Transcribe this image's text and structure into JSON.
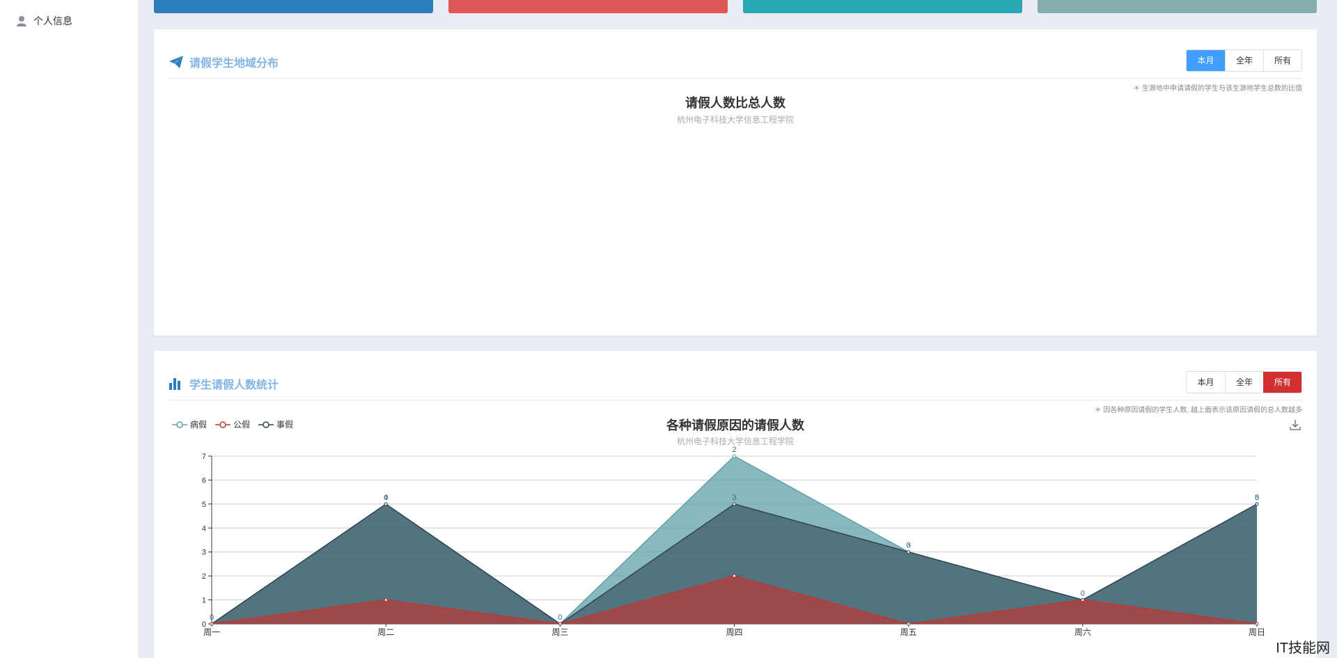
{
  "sidebar": {
    "items": [
      {
        "label": "个人信息",
        "icon": "user-icon"
      }
    ]
  },
  "stat_cards": [
    {
      "color": "#2b7fbd"
    },
    {
      "color": "#dd5757"
    },
    {
      "color": "#2aa9b5"
    },
    {
      "color": "#84adab"
    }
  ],
  "region_panel": {
    "title": "请假学生地域分布",
    "icon": "paper-plane-icon",
    "buttons": [
      "本月",
      "全年",
      "所有"
    ],
    "active_button": "本月",
    "note": "＊ 生源地中申请请假的学生与该生源地学生总数的比值",
    "chart_title": "请假人数比总人数",
    "chart_subtitle": "杭州电子科技大学信息工程学院"
  },
  "stats_panel": {
    "title": "学生请假人数统计",
    "icon": "bar-chart-icon",
    "buttons": [
      "本月",
      "全年",
      "所有"
    ],
    "active_button": "所有",
    "note": "＊ 因各种原因请假的学生人数, 越上面表示该原因请假的总人数越多"
  },
  "chart_data": {
    "type": "area",
    "title": "各种请假原因的请假人数",
    "subtitle": "杭州电子科技大学信息工程学院",
    "categories": [
      "周一",
      "周二",
      "周三",
      "周四",
      "周五",
      "周六",
      "周日"
    ],
    "ylim": [
      0,
      7
    ],
    "yticks": [
      0,
      1,
      2,
      3,
      4,
      5,
      6,
      7
    ],
    "stacked": true,
    "grid": true,
    "legend_position": "top-left",
    "series": [
      {
        "name": "病假",
        "color": "#61a0a8",
        "values": [
          0,
          0,
          0,
          2,
          0,
          0,
          0
        ],
        "stack_total": [
          0,
          5,
          0,
          7,
          3,
          1,
          5
        ]
      },
      {
        "name": "公假",
        "color": "#c23531",
        "values": [
          0,
          1,
          0,
          2,
          0,
          1,
          0
        ],
        "stack_total": [
          0,
          1,
          0,
          2,
          0,
          1,
          0
        ]
      },
      {
        "name": "事假",
        "color": "#2f4554",
        "values": [
          0,
          4,
          0,
          3,
          3,
          0,
          5
        ],
        "stack_total": [
          0,
          5,
          0,
          5,
          3,
          1,
          5
        ]
      }
    ],
    "data_labels": [
      {
        "x": "周一",
        "text": "0",
        "at": 0
      },
      {
        "x": "周二",
        "text": "4",
        "at": 5
      },
      {
        "x": "周二",
        "text": "0",
        "at": 5
      },
      {
        "x": "周三",
        "text": "0",
        "at": 0
      },
      {
        "x": "周四",
        "text": "2",
        "at": 7
      },
      {
        "x": "周四",
        "text": "3",
        "at": 5
      },
      {
        "x": "周五",
        "text": "3",
        "at": 3
      },
      {
        "x": "周五",
        "text": "0",
        "at": 3
      },
      {
        "x": "周六",
        "text": "0",
        "at": 1
      },
      {
        "x": "周日",
        "text": "5",
        "at": 5
      },
      {
        "x": "周日",
        "text": "0",
        "at": 5
      }
    ]
  },
  "watermark": "IT技能网"
}
